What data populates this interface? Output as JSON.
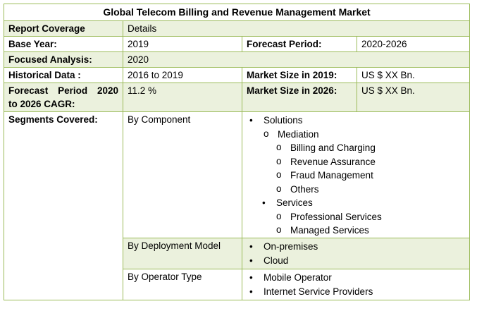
{
  "title": "Global Telecom Billing and Revenue Management Market",
  "header": {
    "coverage": "Report Coverage",
    "details": "Details"
  },
  "base_year": {
    "label": "Base Year:",
    "value": "2019"
  },
  "forecast_period": {
    "label": "Forecast Period:",
    "value": "2020-2026"
  },
  "focused": {
    "label": "Focused Analysis:",
    "value": "2020"
  },
  "historical": {
    "label": "Historical Data :",
    "value": "2016 to 2019"
  },
  "market_2019": {
    "label": "Market Size in 2019:",
    "value": "US $ XX Bn."
  },
  "cagr": {
    "label_line1": "Forecast Period 2020",
    "label_line2": "to 2026 CAGR:",
    "value": "11.2 %"
  },
  "market_2026": {
    "label": "Market Size in 2026:",
    "value": "US $ XX Bn."
  },
  "segments": {
    "label": "Segments Covered:",
    "component": {
      "label": "By Component",
      "solutions": "Solutions",
      "mediation": "Mediation",
      "mediation_items": [
        "Billing and Charging",
        "Revenue Assurance",
        "Fraud Management",
        "Others"
      ],
      "services": "Services",
      "services_items": [
        "Professional Services",
        "Managed Services"
      ]
    },
    "deployment": {
      "label": "By Deployment Model",
      "items": [
        "On-premises",
        "Cloud"
      ]
    },
    "operator": {
      "label": "By Operator Type",
      "items": [
        "Mobile Operator",
        "Internet Service Providers"
      ]
    }
  }
}
